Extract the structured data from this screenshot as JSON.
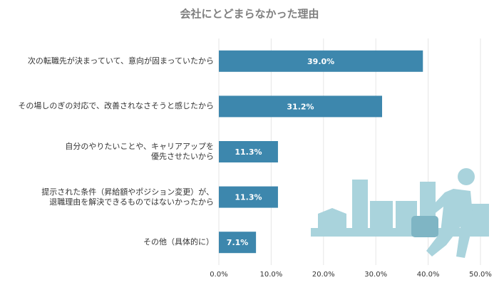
{
  "chart_data": {
    "type": "bar",
    "orientation": "horizontal",
    "title": "会社にとどまらなかった理由",
    "categories": [
      "次の転職先が決まっていて、意向が固まっていたから",
      "その場しのぎの対応で、改善されなさそうと感じたから",
      "自分のやりたいことや、キャリアアップを\n優先させたいから",
      "提示された条件（昇給額やポジション変更）が、\n退職理由を解決できるものではないかったから",
      "その他（具体的に）"
    ],
    "values": [
      39.0,
      31.2,
      11.3,
      11.3,
      7.1
    ],
    "value_labels": [
      "39.0%",
      "31.2%",
      "11.3%",
      "11.3%",
      "7.1%"
    ],
    "color": "#3d87ad",
    "xlim": [
      0,
      50
    ],
    "xticks": [
      {
        "value": 0,
        "label": "0.0%"
      },
      {
        "value": 10,
        "label": "10.0%"
      },
      {
        "value": 20,
        "label": "20.0%"
      },
      {
        "value": 30,
        "label": "30.0%"
      },
      {
        "value": 40,
        "label": "40.0%"
      },
      {
        "value": 50,
        "label": "50.0%"
      }
    ],
    "grid": true
  }
}
